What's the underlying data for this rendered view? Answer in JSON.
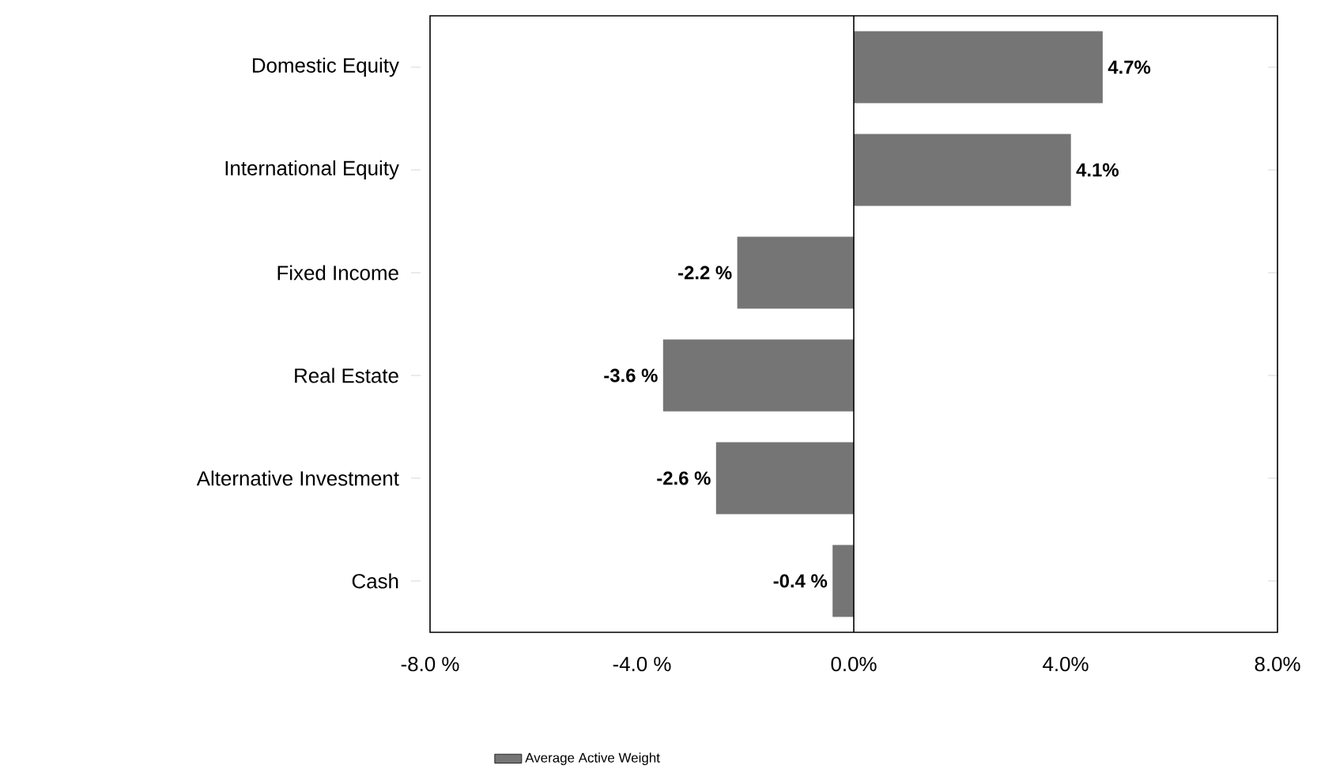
{
  "chart_data": {
    "type": "bar",
    "orientation": "horizontal",
    "categories": [
      "Domestic Equity",
      "International Equity",
      "Fixed Income",
      "Real Estate",
      "Alternative Investment",
      "Cash"
    ],
    "series": [
      {
        "name": "Average Active Weight",
        "color": "#757575",
        "values": [
          4.7,
          4.1,
          -2.2,
          -3.6,
          -2.6,
          -0.4
        ],
        "value_labels": [
          "4.7%",
          "4.1%",
          "-2.2 %",
          "-3.6 %",
          "-2.6 %",
          "-0.4 %"
        ]
      }
    ],
    "xlim": [
      -8,
      8
    ],
    "xticks": [
      {
        "value": -8,
        "label": "-8.0 %"
      },
      {
        "value": -4,
        "label": "-4.0 %"
      },
      {
        "value": 0,
        "label": "0.0%"
      },
      {
        "value": 4,
        "label": "4.0%"
      },
      {
        "value": 8,
        "label": "8.0%"
      }
    ],
    "ref_lines": [
      {
        "axis": "x",
        "value": 0,
        "color": "#000000"
      }
    ],
    "grid": false,
    "legend": "bottom"
  }
}
